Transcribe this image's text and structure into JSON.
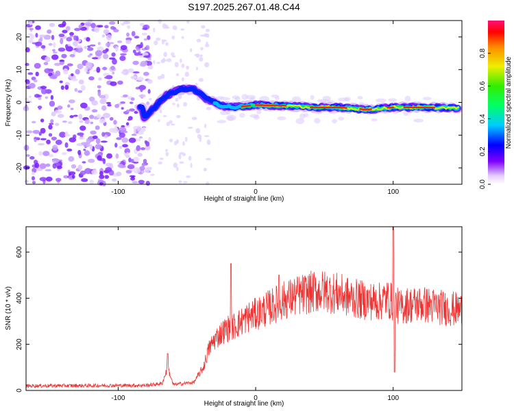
{
  "title": "S197.2025.267.01.48.C44",
  "chart_data": [
    {
      "type": "heatmap",
      "name": "spectrogram",
      "xlabel": "Height of straight line (km)",
      "ylabel": "Frequency (Hz)",
      "xlim": [
        -167,
        150
      ],
      "ylim": [
        -25,
        25
      ],
      "xticks": [
        -100,
        0,
        100
      ],
      "yticks": [
        -20,
        -10,
        0,
        10,
        20
      ],
      "description_ridge": [
        {
          "x": -82,
          "y": -5,
          "amp": 0.35
        },
        {
          "x": -75,
          "y": -2,
          "amp": 0.45
        },
        {
          "x": -65,
          "y": 2,
          "amp": 0.4
        },
        {
          "x": -55,
          "y": 4,
          "amp": 0.35
        },
        {
          "x": -45,
          "y": 4,
          "amp": 0.4
        },
        {
          "x": -35,
          "y": 1,
          "amp": 0.45
        },
        {
          "x": -25,
          "y": -1,
          "amp": 0.6
        },
        {
          "x": -15,
          "y": -1.5,
          "amp": 0.7
        },
        {
          "x": 0,
          "y": -0.8,
          "amp": 0.85
        },
        {
          "x": 20,
          "y": -1,
          "amp": 0.9
        },
        {
          "x": 40,
          "y": -1.5,
          "amp": 0.95
        },
        {
          "x": 60,
          "y": -1.5,
          "amp": 1.0
        },
        {
          "x": 80,
          "y": -2.2,
          "amp": 0.9
        },
        {
          "x": 100,
          "y": -1.5,
          "amp": 0.95
        },
        {
          "x": 120,
          "y": -1.5,
          "amp": 0.9
        },
        {
          "x": 147,
          "y": -1.7,
          "amp": 0.85
        }
      ],
      "colorbar": {
        "label": "Normalized spectral amplitude",
        "range": [
          0,
          1
        ],
        "ticks": [
          0.0,
          0.2,
          0.4,
          0.6,
          0.8
        ]
      }
    },
    {
      "type": "line",
      "name": "snr",
      "xlabel": "Height of straight line (km)",
      "ylabel": "SNR (10 * v/v)",
      "xlim": [
        -167,
        150
      ],
      "ylim": [
        0,
        710
      ],
      "xticks": [
        -100,
        0,
        100
      ],
      "yticks": [
        0,
        200,
        400,
        600
      ],
      "color": "#ee3333",
      "envelope": {
        "x": [
          -167,
          -80,
          -68,
          -64,
          -60,
          -45,
          -38,
          -34,
          -30,
          -25,
          -20,
          -15,
          -10,
          -5,
          0,
          10,
          20,
          30,
          40,
          50,
          60,
          70,
          80,
          90,
          95,
          100,
          105,
          110,
          120,
          130,
          140,
          150
        ],
        "y": [
          20,
          22,
          30,
          100,
          25,
          35,
          100,
          180,
          220,
          250,
          270,
          280,
          300,
          320,
          330,
          360,
          390,
          410,
          425,
          430,
          420,
          400,
          390,
          385,
          400,
          380,
          360,
          370,
          375,
          365,
          355,
          350
        ]
      },
      "spikes": [
        {
          "x": -64,
          "y": 160
        },
        {
          "x": -18,
          "y": 550
        },
        {
          "x": 17,
          "y": 500
        },
        {
          "x": 100,
          "y": 710
        },
        {
          "x": 101,
          "y": 80
        }
      ]
    }
  ]
}
